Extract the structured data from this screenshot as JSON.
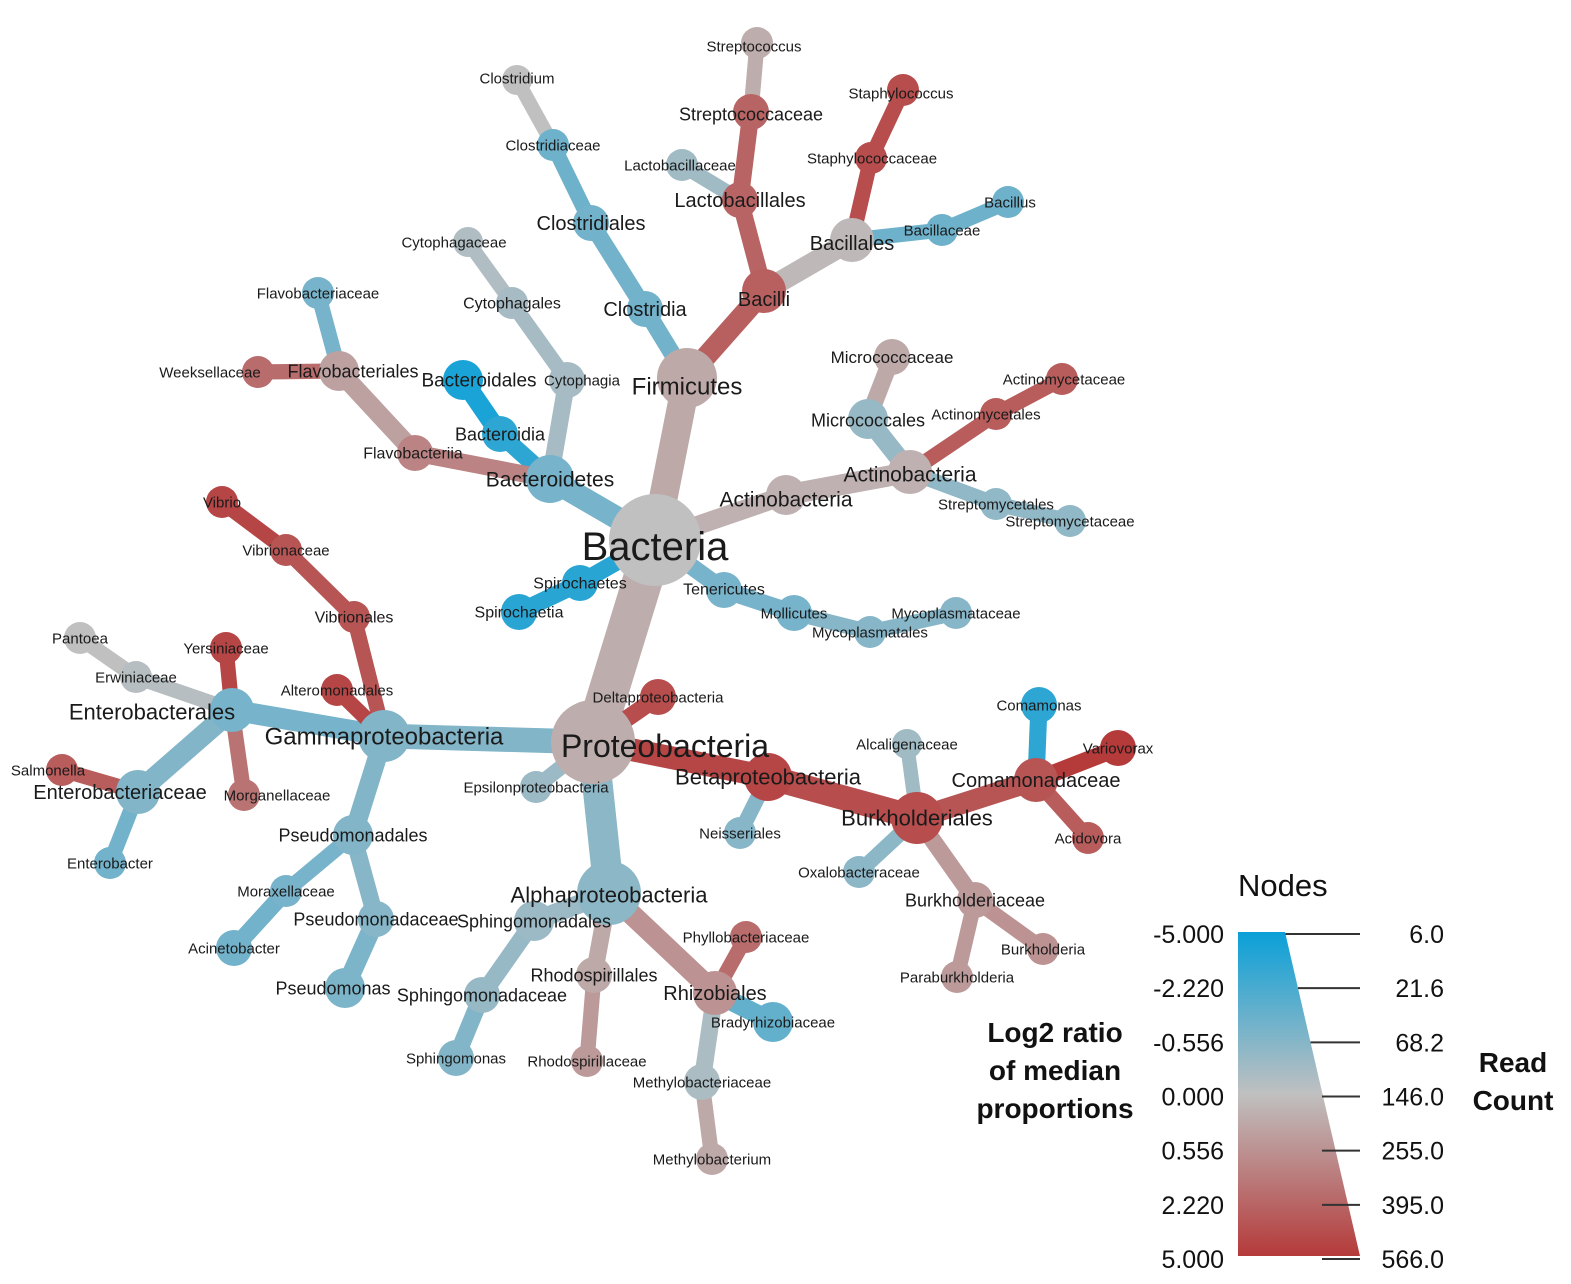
{
  "colors": {
    "low": "#0aa0d8",
    "mid": "#c0c0c0",
    "high": "#b53a3a"
  },
  "nodes": [
    {
      "id": "bacteria",
      "label": "Bacteria",
      "value": 0.0
    },
    {
      "id": "firmicutes",
      "label": "Firmicutes",
      "value": 0.6
    },
    {
      "id": "bacilli",
      "label": "Bacilli",
      "value": 2.5
    },
    {
      "id": "lactobacillales",
      "label": "Lactobacillales",
      "value": 2.4
    },
    {
      "id": "streptococcaceae",
      "label": "Streptococcaceae",
      "value": 2.4
    },
    {
      "id": "streptococcus",
      "label": "Streptococcus",
      "value": 0.5
    },
    {
      "id": "lactobacillaceae",
      "label": "Lactobacillaceae",
      "value": -0.6
    },
    {
      "id": "bacillales",
      "label": "Bacillales",
      "value": 0.2
    },
    {
      "id": "staphylococcaceae",
      "label": "Staphylococcaceae",
      "value": 3.0
    },
    {
      "id": "staphylococcus",
      "label": "Staphylococcus",
      "value": 3.0
    },
    {
      "id": "bacillaceae",
      "label": "Bacillaceae",
      "value": -1.6
    },
    {
      "id": "bacillus",
      "label": "Bacillus",
      "value": -1.6
    },
    {
      "id": "clostridia",
      "label": "Clostridia",
      "value": -1.5
    },
    {
      "id": "clostridiales",
      "label": "Clostridiales",
      "value": -1.5
    },
    {
      "id": "clostridiaceae",
      "label": "Clostridiaceae",
      "value": -1.6
    },
    {
      "id": "clostridium",
      "label": "Clostridium",
      "value": 0.0
    },
    {
      "id": "bacteroidetes",
      "label": "Bacteroidetes",
      "value": -1.4
    },
    {
      "id": "cytophagia",
      "label": "Cytophagia",
      "value": -0.5
    },
    {
      "id": "cytophagales",
      "label": "Cytophagales",
      "value": -0.5
    },
    {
      "id": "cytophagaceae",
      "label": "Cytophagaceae",
      "value": -0.3
    },
    {
      "id": "bacteroidia",
      "label": "Bacteroidia",
      "value": -2.8
    },
    {
      "id": "bacteroidales",
      "label": "Bacteroidales",
      "value": -3.2
    },
    {
      "id": "flavobacteriia",
      "label": "Flavobacteriia",
      "value": 1.6
    },
    {
      "id": "flavobacteriales",
      "label": "Flavobacteriales",
      "value": 0.8
    },
    {
      "id": "flavobacteriaceae",
      "label": "Flavobacteriaceae",
      "value": -1.4
    },
    {
      "id": "weeksellaceae",
      "label": "Weeksellaceae",
      "value": 2.2
    },
    {
      "id": "actinobacteria_p",
      "label": "Actinobacteria",
      "value": 0.4
    },
    {
      "id": "actinobacteria_c",
      "label": "Actinobacteria",
      "value": 0.4
    },
    {
      "id": "micrococcales",
      "label": "Micrococcales",
      "value": -0.8
    },
    {
      "id": "micrococcaceae",
      "label": "Micrococcaceae",
      "value": 0.6
    },
    {
      "id": "actinomycetales",
      "label": "Actinomycetales",
      "value": 2.6
    },
    {
      "id": "actinomycetaceae",
      "label": "Actinomycetaceae",
      "value": 2.6
    },
    {
      "id": "streptomycetales",
      "label": "Streptomycetales",
      "value": -0.9
    },
    {
      "id": "streptomycetaceae",
      "label": "Streptomycetaceae",
      "value": -0.9
    },
    {
      "id": "spirochaetes",
      "label": "Spirochaetes",
      "value": -2.9
    },
    {
      "id": "spirochaetia",
      "label": "Spirochaetia",
      "value": -2.9
    },
    {
      "id": "tenericutes",
      "label": "Tenericutes",
      "value": -1.4
    },
    {
      "id": "mollicutes",
      "label": "Mollicutes",
      "value": -1.4
    },
    {
      "id": "mycoplasmatales",
      "label": "Mycoplasmatales",
      "value": -1.1
    },
    {
      "id": "mycoplasmataceae",
      "label": "Mycoplasmataceae",
      "value": -1.1
    },
    {
      "id": "proteobacteria",
      "label": "Proteobacteria",
      "value": 0.5
    },
    {
      "id": "deltaproteobacteria",
      "label": "Deltaproteobacteria",
      "value": 3.0
    },
    {
      "id": "epsilonproteobacteria",
      "label": "Epsilonproteobacteria",
      "value": -0.7
    },
    {
      "id": "gammaproteobacteria",
      "label": "Gammaproteobacteria",
      "value": -1.2
    },
    {
      "id": "enterobacterales",
      "label": "Enterobacterales",
      "value": -1.4
    },
    {
      "id": "yersiniaceae",
      "label": "Yersiniaceae",
      "value": 3.2
    },
    {
      "id": "erwiniaceae",
      "label": "Erwiniaceae",
      "value": -0.2
    },
    {
      "id": "pantoea",
      "label": "Pantoea",
      "value": 0.0
    },
    {
      "id": "morganellaceae",
      "label": "Morganellaceae",
      "value": 2.0
    },
    {
      "id": "enterobacteriaceae",
      "label": "Enterobacteriaceae",
      "value": -1.2
    },
    {
      "id": "salmonella",
      "label": "Salmonella",
      "value": 2.6
    },
    {
      "id": "enterobacter",
      "label": "Enterobacter",
      "value": -1.5
    },
    {
      "id": "vibrionales",
      "label": "Vibrionales",
      "value": 2.8
    },
    {
      "id": "vibrionaceae",
      "label": "Vibrionaceae",
      "value": 2.8
    },
    {
      "id": "vibrio",
      "label": "Vibrio",
      "value": 3.2
    },
    {
      "id": "alteromonadales",
      "label": "Alteromonadales",
      "value": 3.2
    },
    {
      "id": "pseudomonadales",
      "label": "Pseudomonadales",
      "value": -1.2
    },
    {
      "id": "moraxellaceae",
      "label": "Moraxellaceae",
      "value": -1.4
    },
    {
      "id": "acinetobacter",
      "label": "Acinetobacter",
      "value": -1.5
    },
    {
      "id": "pseudomonadaceae",
      "label": "Pseudomonadaceae",
      "value": -1.1
    },
    {
      "id": "pseudomonas",
      "label": "Pseudomonas",
      "value": -1.3
    },
    {
      "id": "betaproteobacteria",
      "label": "Betaproteobacteria",
      "value": 3.2
    },
    {
      "id": "burkholderiales",
      "label": "Burkholderiales",
      "value": 3.0
    },
    {
      "id": "neisseriales",
      "label": "Neisseriales",
      "value": -1.1
    },
    {
      "id": "comamonadaceae",
      "label": "Comamonadaceae",
      "value": 2.8
    },
    {
      "id": "comamonas",
      "label": "Comamonas",
      "value": -2.8
    },
    {
      "id": "variovorax",
      "label": "Variovorax",
      "value": 4.5
    },
    {
      "id": "acidovora",
      "label": "Acidovora",
      "value": 2.6
    },
    {
      "id": "alcaligenaceae",
      "label": "Alcaligenaceae",
      "value": -0.6
    },
    {
      "id": "oxalobacteraceae",
      "label": "Oxalobacteraceae",
      "value": -1.0
    },
    {
      "id": "burkholderiaceae",
      "label": "Burkholderiaceae",
      "value": 1.0
    },
    {
      "id": "burkholderia",
      "label": "Burkholderia",
      "value": 1.2
    },
    {
      "id": "paraburkholderia",
      "label": "Paraburkholderia",
      "value": 1.0
    },
    {
      "id": "alphaproteobacteria",
      "label": "Alphaproteobacteria",
      "value": -1.0
    },
    {
      "id": "sphingomonadales",
      "label": "Sphingomonadales",
      "value": -0.7
    },
    {
      "id": "sphingomonadaceae",
      "label": "Sphingomonadaceae",
      "value": -0.8
    },
    {
      "id": "sphingomonas",
      "label": "Sphingomonas",
      "value": -1.2
    },
    {
      "id": "rhodospirillales",
      "label": "Rhodospirillales",
      "value": 0.6
    },
    {
      "id": "rhodospirillaceae",
      "label": "Rhodospirillaceae",
      "value": 1.0
    },
    {
      "id": "rhizobiales",
      "label": "Rhizobiales",
      "value": 1.2
    },
    {
      "id": "phyllobacteriaceae",
      "label": "Phyllobacteriaceae",
      "value": 2.2
    },
    {
      "id": "bradyrhizobiaceae",
      "label": "Bradyrhizobiaceae",
      "value": -1.8
    },
    {
      "id": "methylobacteriaceae",
      "label": "Methylobacteriaceae",
      "value": -0.4
    },
    {
      "id": "methylobacterium",
      "label": "Methylobacterium",
      "value": 0.6
    }
  ],
  "legend": {
    "title": "Nodes",
    "color_scale_label": "Log2 ratio of median proportions",
    "size_scale_label": "Read Count",
    "color_ticks": [
      "-5.000",
      "-2.220",
      "-0.556",
      "0.000",
      "0.556",
      "2.220",
      "5.000"
    ],
    "size_ticks": [
      "6.0",
      "21.6",
      "68.2",
      "146.0",
      "255.0",
      "395.0",
      "566.0"
    ]
  }
}
